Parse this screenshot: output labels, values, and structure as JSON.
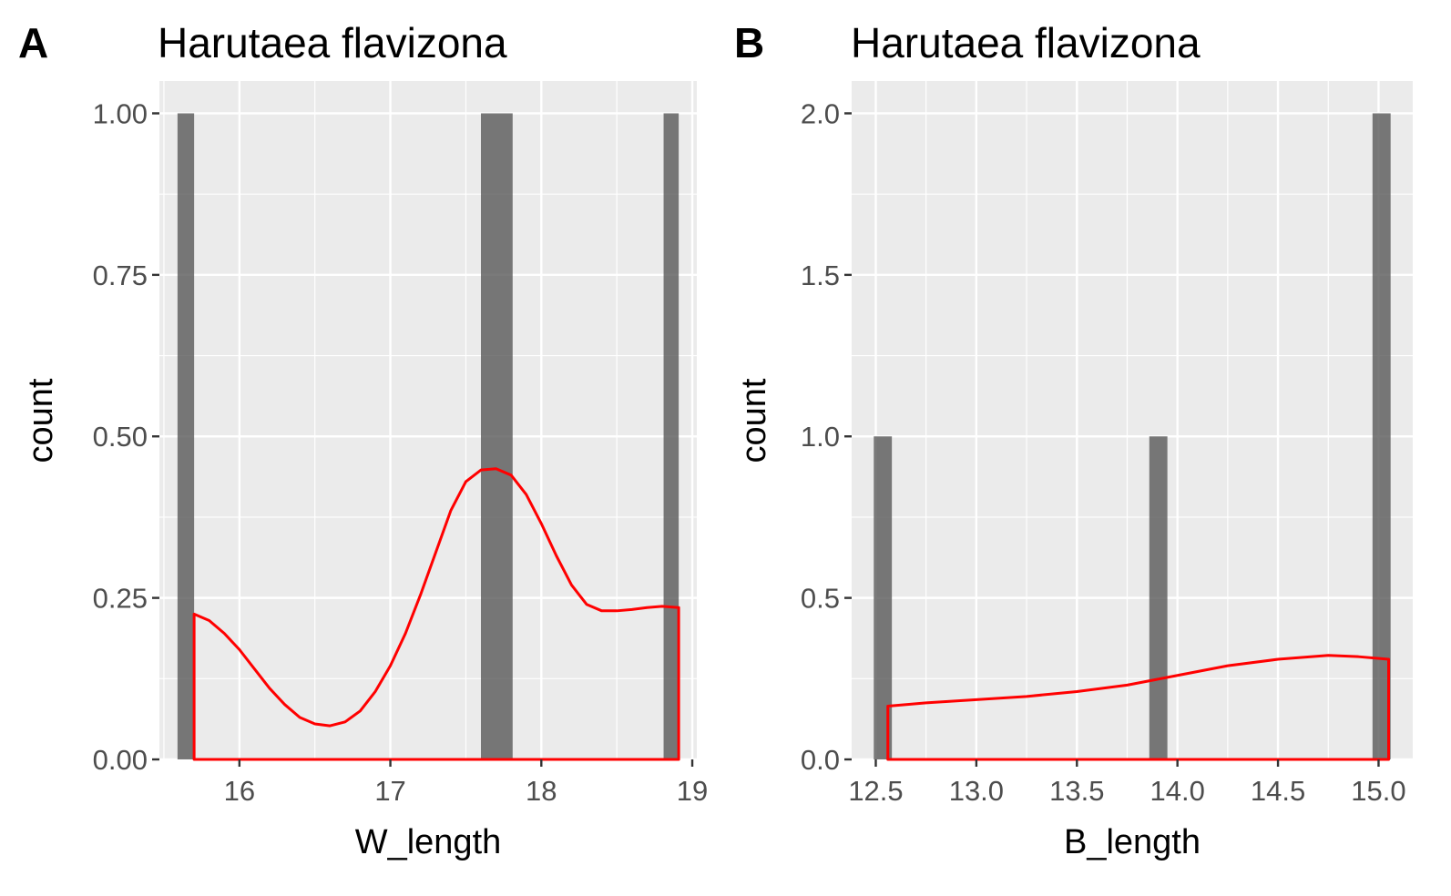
{
  "chart_data": [
    {
      "type": "histogram",
      "panel_tag": "A",
      "title": "Harutaea flavizona",
      "xlabel": "W_length",
      "ylabel": "count",
      "xlim": [
        15.47,
        19.03
      ],
      "ylim": [
        0,
        1.05
      ],
      "x_ticks": [
        16,
        17,
        18,
        19
      ],
      "x_tick_labels": [
        "16",
        "17",
        "18",
        "19"
      ],
      "x_minor": [
        15.5,
        16.5,
        17.5,
        18.5
      ],
      "y_ticks": [
        0,
        0.25,
        0.5,
        0.75,
        1.0
      ],
      "y_tick_labels": [
        "0.00",
        "0.25",
        "0.50",
        "0.75",
        "1.00"
      ],
      "y_minor": [
        0.125,
        0.375,
        0.625,
        0.875
      ],
      "bars": [
        {
          "x0": 15.59,
          "x1": 15.7,
          "count": 1
        },
        {
          "x0": 17.6,
          "x1": 17.81,
          "count": 1
        },
        {
          "x0": 18.81,
          "x1": 18.91,
          "count": 1
        }
      ],
      "density": {
        "color": "#ff0000",
        "x": [
          15.7,
          15.8,
          15.9,
          16.0,
          16.1,
          16.2,
          16.3,
          16.4,
          16.5,
          16.6,
          16.7,
          16.8,
          16.9,
          17.0,
          17.1,
          17.2,
          17.3,
          17.4,
          17.5,
          17.6,
          17.7,
          17.8,
          17.9,
          18.0,
          18.1,
          18.2,
          18.3,
          18.4,
          18.5,
          18.6,
          18.7,
          18.8,
          18.91
        ],
        "y": [
          0.225,
          0.215,
          0.195,
          0.17,
          0.14,
          0.11,
          0.085,
          0.065,
          0.055,
          0.052,
          0.058,
          0.075,
          0.105,
          0.145,
          0.195,
          0.255,
          0.32,
          0.385,
          0.43,
          0.448,
          0.45,
          0.44,
          0.41,
          0.365,
          0.315,
          0.27,
          0.24,
          0.23,
          0.23,
          0.232,
          0.235,
          0.237,
          0.235
        ]
      },
      "grid": true
    },
    {
      "type": "histogram",
      "panel_tag": "B",
      "title": "Harutaea flavizona",
      "xlabel": "B_length",
      "ylabel": "count",
      "xlim": [
        12.38,
        15.17
      ],
      "ylim": [
        0,
        2.1
      ],
      "x_ticks": [
        12.5,
        13.0,
        13.5,
        14.0,
        14.5,
        15.0
      ],
      "x_tick_labels": [
        "12.5",
        "13.0",
        "13.5",
        "14.0",
        "14.5",
        "15.0"
      ],
      "x_minor": [
        12.75,
        13.25,
        13.75,
        14.25,
        14.75
      ],
      "y_ticks": [
        0,
        0.5,
        1.0,
        1.5,
        2.0
      ],
      "y_tick_labels": [
        "0.0",
        "0.5",
        "1.0",
        "1.5",
        "2.0"
      ],
      "y_minor": [
        0.25,
        0.75,
        1.25,
        1.75
      ],
      "bars": [
        {
          "x0": 12.49,
          "x1": 12.58,
          "count": 1
        },
        {
          "x0": 13.86,
          "x1": 13.95,
          "count": 1
        },
        {
          "x0": 14.97,
          "x1": 15.06,
          "count": 2
        }
      ],
      "density": {
        "color": "#ff0000",
        "x": [
          12.56,
          12.75,
          13.0,
          13.25,
          13.5,
          13.75,
          14.0,
          14.25,
          14.5,
          14.75,
          14.9,
          15.05
        ],
        "y": [
          0.165,
          0.175,
          0.185,
          0.195,
          0.21,
          0.23,
          0.26,
          0.29,
          0.31,
          0.322,
          0.318,
          0.31
        ]
      },
      "grid": true
    }
  ]
}
